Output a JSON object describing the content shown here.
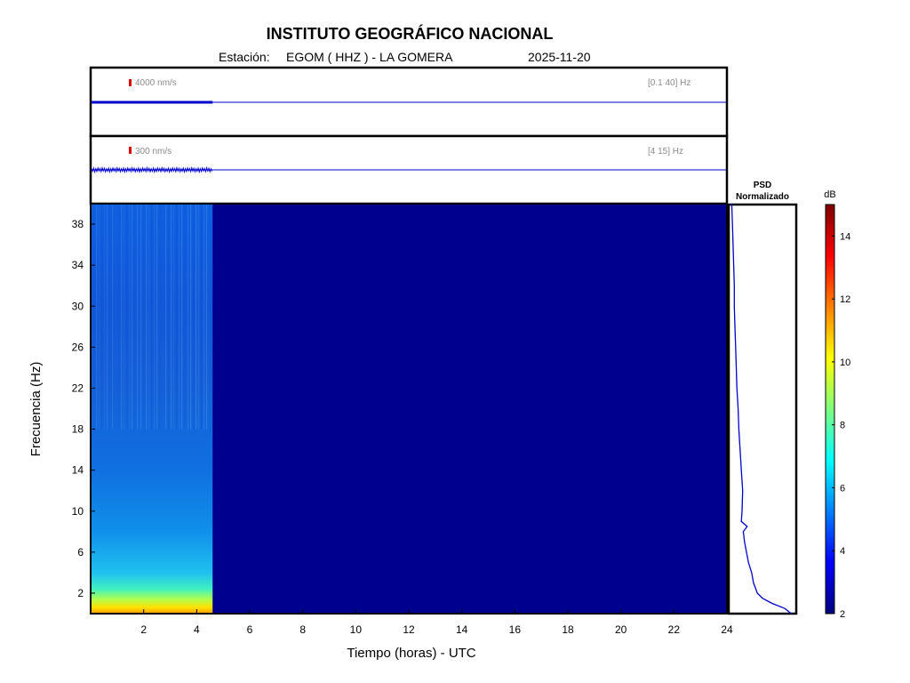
{
  "header": {
    "title": "INSTITUTO GEOGRÁFICO NACIONAL",
    "station_prefix": "Estación:",
    "station": "EGOM ( HHZ ) - LA GOMERA",
    "date": "2025-11-20"
  },
  "colors": {
    "trace": "#0000cc",
    "scale_bar": "#e00000",
    "background_dark": "#00008f",
    "axes": "#000000"
  },
  "chart_data": [
    {
      "type": "line",
      "id": "waveform_broadband",
      "scale_label": "4000 nm/s",
      "band_label": "[0.1 40] Hz",
      "x_range_hours": [
        0,
        24
      ],
      "data_end_hour": 4.6
    },
    {
      "type": "line",
      "id": "waveform_filtered",
      "scale_label": "300 nm/s",
      "band_label": "[4 15] Hz",
      "x_range_hours": [
        0,
        24
      ],
      "data_end_hour": 4.6
    },
    {
      "type": "heatmap",
      "id": "spectrogram",
      "xlabel": "Tiempo (horas) - UTC",
      "ylabel": "Frecuencia  (Hz)",
      "xlim": [
        0,
        24
      ],
      "ylim": [
        0,
        40
      ],
      "xticks": [
        2,
        4,
        6,
        8,
        10,
        12,
        14,
        16,
        18,
        20,
        22,
        24
      ],
      "yticks": [
        2,
        6,
        10,
        14,
        18,
        22,
        26,
        30,
        34,
        38
      ],
      "data_end_hour": 4.6,
      "colorbar": {
        "label": "dB",
        "range": [
          2,
          15
        ],
        "ticks": [
          2,
          4,
          6,
          8,
          10,
          12,
          14
        ],
        "colormap": "jet"
      }
    },
    {
      "type": "line",
      "id": "psd",
      "title_line1": "PSD",
      "title_line2": "Normalizado",
      "y_freq_hz": [
        0,
        0.5,
        1,
        1.5,
        2,
        3,
        4,
        5,
        6,
        7,
        8,
        8.5,
        9,
        10,
        12,
        14,
        16,
        18,
        20,
        22,
        24,
        26,
        28,
        30,
        32,
        34,
        36,
        38,
        40
      ],
      "x_norm": [
        0.95,
        0.85,
        0.65,
        0.5,
        0.42,
        0.36,
        0.33,
        0.28,
        0.25,
        0.22,
        0.2,
        0.26,
        0.17,
        0.18,
        0.19,
        0.17,
        0.15,
        0.13,
        0.12,
        0.1,
        0.09,
        0.08,
        0.07,
        0.06,
        0.06,
        0.05,
        0.04,
        0.03,
        0.02
      ]
    }
  ]
}
